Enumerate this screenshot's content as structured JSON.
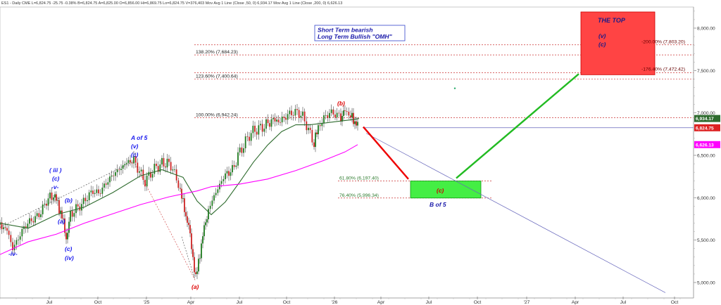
{
  "header": {
    "text": "ES1 - Daily  CME  L=6,824.75  -25.75  -0.38%  B=6,824.75  A=6,825.00  O=6,856.00  Hi=6,869.75  Lo=6,824.75  V=376,403  Mov Avg 1 Line (Close ,50, 0)  6,934.17  Mov Avg 1 Line (Close ,200, 0)  6,626.13"
  },
  "colors": {
    "price_up": "#1e7a1e",
    "price_down": "#cc2222",
    "ma50": "#2e6b2e",
    "ma200": "#ff00ff",
    "wave_label": "#0000cc",
    "wave_red": "#dd0000",
    "fib_line": "#cc3333",
    "top_box": "#ff4444",
    "target_box": "#44ee44",
    "projection_down": "#ee0000",
    "projection_up": "#22bb22",
    "channel": "#6666bb"
  },
  "chart_data": {
    "type": "candlestick",
    "x_axis": {
      "labels": [
        "Jul",
        "Oct",
        "'25",
        "Apr",
        "Jul",
        "Oct",
        "'26",
        "Apr",
        "Jul",
        "Oct",
        "'27",
        "Apr",
        "Jul",
        "Oct"
      ]
    },
    "y_axis": {
      "labels": [
        "8,000.00",
        "7,500.00",
        "7,000.00",
        "6,500.00",
        "6,000.00",
        "5,500.00",
        "5,000.00"
      ],
      "range": [
        4970,
        8230
      ]
    },
    "price_badges": [
      {
        "label": "6,934.17",
        "value": 6934.17,
        "color": "#2e6b2e"
      },
      {
        "label": "6,824.75",
        "value": 6824.75,
        "color": "#dd2222"
      },
      {
        "label": "6,626.13",
        "value": 6626.13,
        "color": "#ff00ff"
      }
    ],
    "annotation_box": {
      "line1": "Short Term bearish",
      "line2": "Long Term Bullish \"OMH\""
    },
    "top_box": {
      "title": "THE TOP",
      "wave1": "(v)",
      "wave2": "(c)",
      "level_high": "-200.00% (7,803.20)",
      "level_low": "-176.40% (7,472.42)"
    },
    "target_box": {
      "label": "(c)",
      "caption": "B of 5"
    },
    "fib_levels": [
      {
        "label": "138.20% (7,684.23)",
        "value": 7684.23
      },
      {
        "label": "123.60% (7,400.64)",
        "value": 7400.64
      },
      {
        "label": "100.00% (6,942.24)",
        "value": 6942.24
      },
      {
        "label": "61.80% (6,197.40)",
        "value": 6197.4
      },
      {
        "label": "76.40% (5,996.34)",
        "value": 5996.34
      }
    ],
    "wave_labels": {
      "iv_low": "-iv-",
      "iii": "( iii )",
      "iii_c": "(c)",
      "v_small": "-v-",
      "b_small": "(b)",
      "a_small": "(a)",
      "c_iv_1": "(c)",
      "c_iv_2": "(iv)",
      "a_of_5": "A of 5",
      "a5_v": "(v)",
      "a5_c": "(c)",
      "a_big": "(a)",
      "b_big": "(b)"
    }
  }
}
